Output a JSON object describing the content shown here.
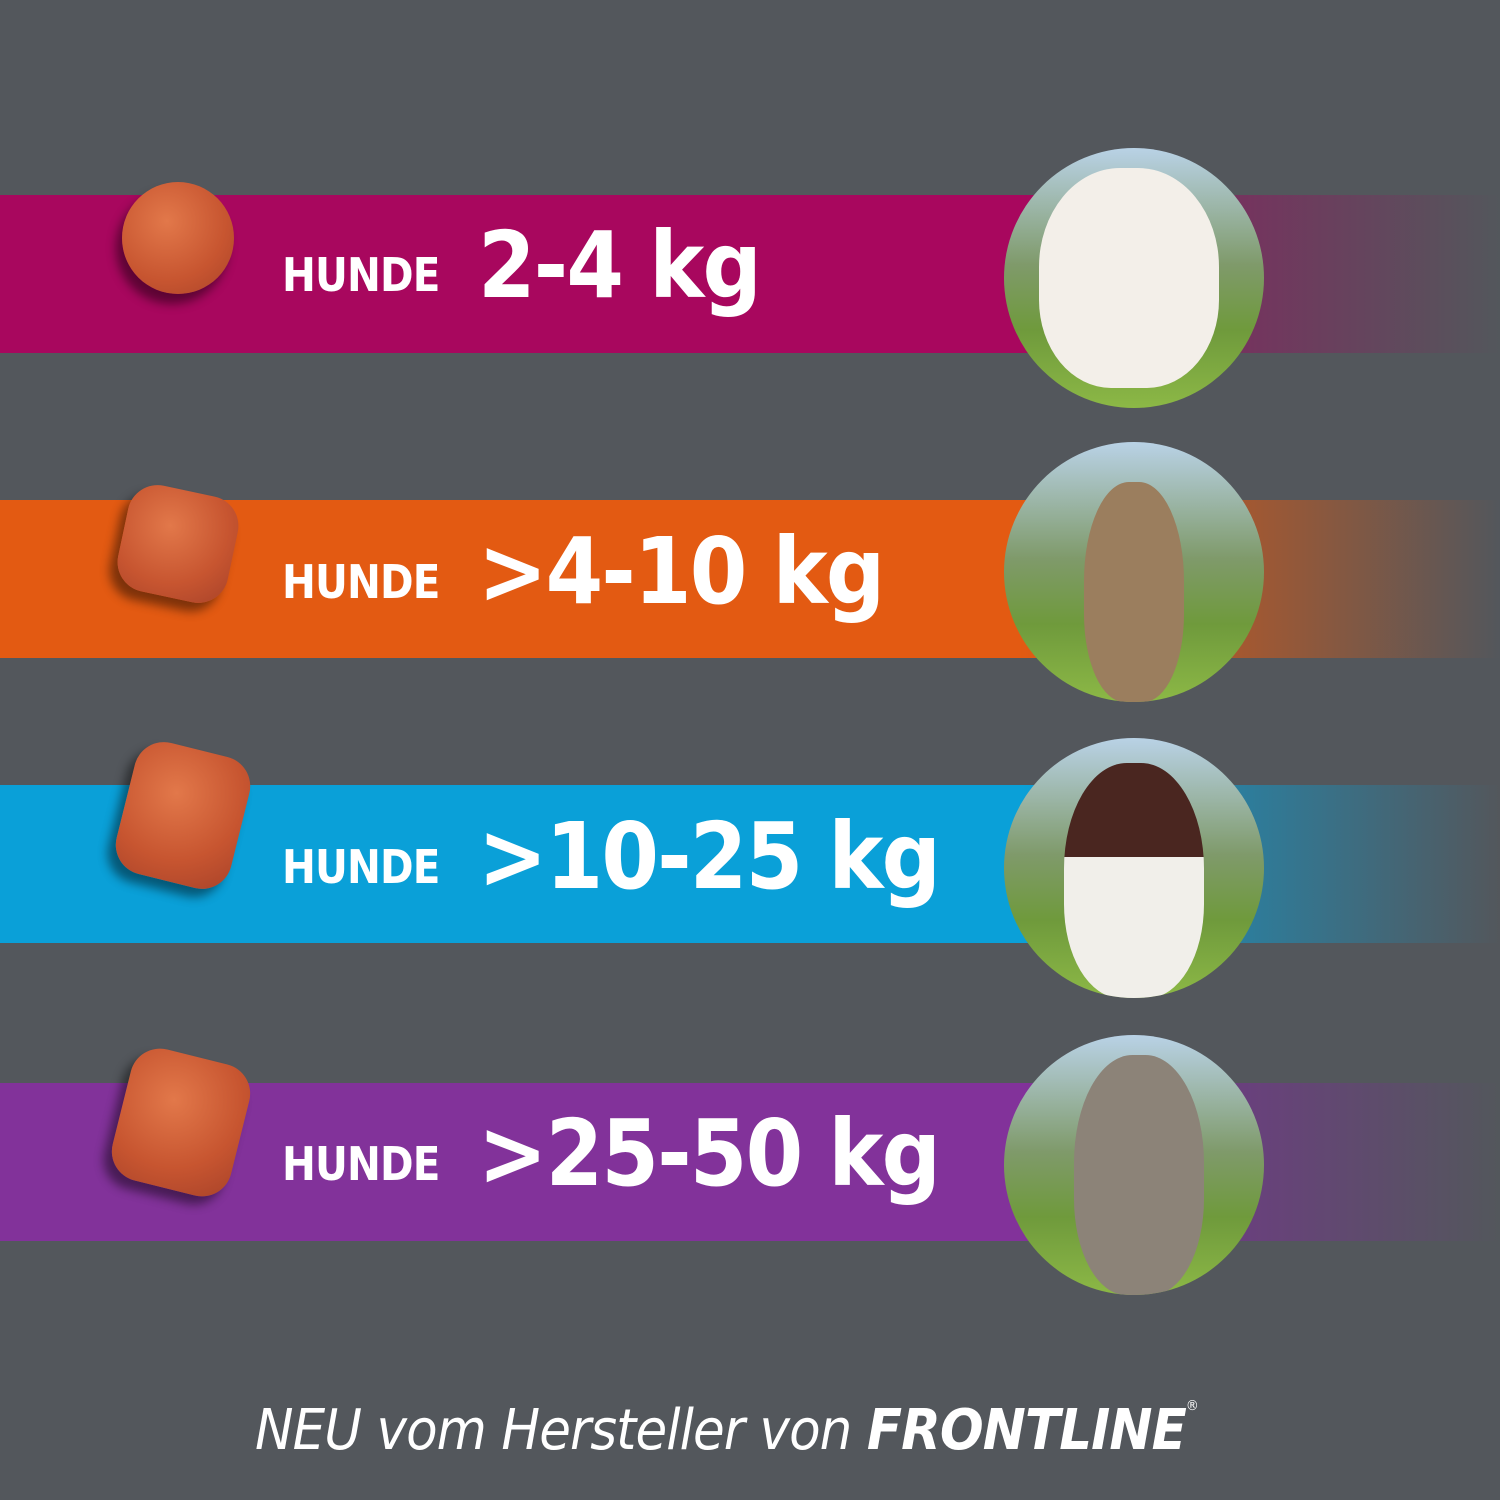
{
  "colors": {
    "background": "#53575c",
    "band_1": "#a8075e",
    "band_2": "#e35a12",
    "band_3": "#0aa0d8",
    "band_4": "#82329a"
  },
  "rows": [
    {
      "label": "HUNDE",
      "weight": "2-4 kg",
      "dog": "small white dog"
    },
    {
      "label": "HUNDE",
      "weight": ">4-10 kg",
      "dog": "terrier"
    },
    {
      "label": "HUNDE",
      "weight": ">10-25 kg",
      "dog": "spaniel"
    },
    {
      "label": "HUNDE",
      "weight": ">25-50 kg",
      "dog": "weimaraner"
    }
  ],
  "footer": {
    "prefix": "NEU vom Hersteller von",
    "brand": "FRONTLINE",
    "reg": "®"
  }
}
